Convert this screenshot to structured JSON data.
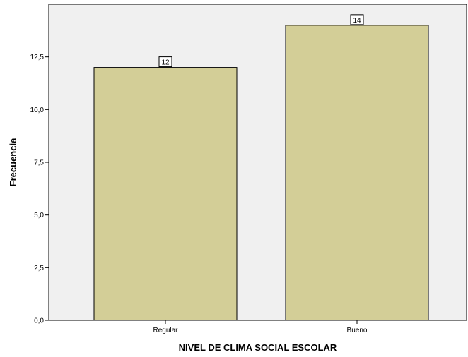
{
  "chart_data": {
    "type": "bar",
    "categories": [
      "Regular",
      "Bueno"
    ],
    "values": [
      12,
      14
    ],
    "data_labels": [
      "12",
      "14"
    ],
    "title": "",
    "xlabel": "NIVEL DE CLIMA SOCIAL ESCOLAR",
    "ylabel": "Frecuencia",
    "ylim": [
      0,
      15
    ],
    "yticks": [
      0,
      2.5,
      5,
      7.5,
      10,
      12.5
    ],
    "ytick_labels": [
      "0,0",
      "2,5",
      "5,0",
      "7,5",
      "10,0",
      "12,5"
    ],
    "grid": false,
    "legend": "none"
  },
  "colors": {
    "plot_background": "#f0f0f0",
    "bar_fill": "#d3ce97",
    "bar_stroke": "#000000",
    "axis": "#000000"
  }
}
